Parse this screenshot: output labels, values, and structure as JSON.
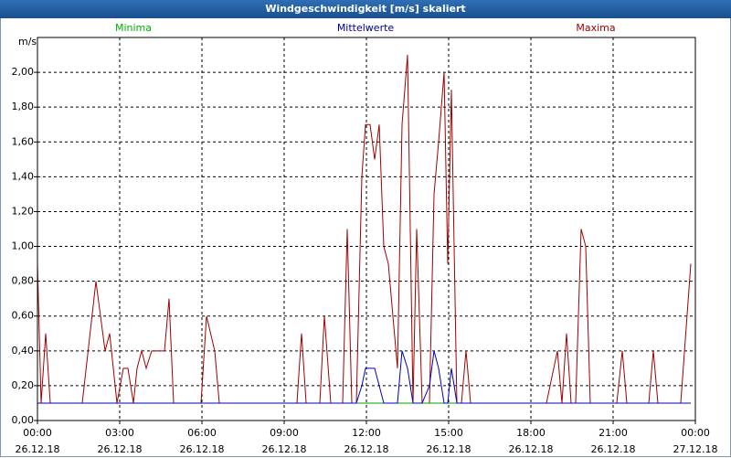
{
  "chart_data": {
    "type": "line",
    "title": "Windgeschwindigkeit [m/s] skaliert",
    "y_label": "m/s",
    "grid": true,
    "xlim": [
      0,
      1440
    ],
    "xticks": [
      {
        "value": 0,
        "label": "00:00\n26.12.18"
      },
      {
        "value": 180,
        "label": "03:00\n26.12.18"
      },
      {
        "value": 360,
        "label": "06:00\n26.12.18"
      },
      {
        "value": 540,
        "label": "09:00\n26.12.18"
      },
      {
        "value": 720,
        "label": "12:00\n26.12.18"
      },
      {
        "value": 900,
        "label": "15:00\n26.12.18"
      },
      {
        "value": 1080,
        "label": "18:00\n26.12.18"
      },
      {
        "value": 1260,
        "label": "21:00\n26.12.18"
      },
      {
        "value": 1440,
        "label": "00:00\n27.12.18"
      }
    ],
    "ylim": [
      0,
      2.2
    ],
    "yticks": [
      {
        "value": 0,
        "label": "0,00"
      },
      {
        "value": 0.2,
        "label": "0,20"
      },
      {
        "value": 0.4,
        "label": "0,40"
      },
      {
        "value": 0.6,
        "label": "0,60"
      },
      {
        "value": 0.8,
        "label": "0,80"
      },
      {
        "value": 1.0,
        "label": "1,00"
      },
      {
        "value": 1.2,
        "label": "1,20"
      },
      {
        "value": 1.4,
        "label": "1,40"
      },
      {
        "value": 1.6,
        "label": "1,60"
      },
      {
        "value": 1.8,
        "label": "1,80"
      },
      {
        "value": 2.0,
        "label": "2,00"
      }
    ],
    "x": [
      0,
      8,
      18,
      28,
      98,
      128,
      148,
      158,
      174,
      188,
      198,
      210,
      218,
      228,
      238,
      250,
      278,
      288,
      298,
      358,
      370,
      388,
      398,
      568,
      578,
      588,
      618,
      628,
      642,
      668,
      678,
      688,
      698,
      710,
      718,
      728,
      738,
      748,
      758,
      768,
      788,
      798,
      810,
      822,
      830,
      842,
      858,
      868,
      878,
      890,
      898,
      906,
      918,
      928,
      938,
      948,
      1114,
      1138,
      1148,
      1158,
      1168,
      1178,
      1190,
      1200,
      1210,
      1268,
      1280,
      1290,
      1338,
      1348,
      1358,
      1408,
      1430
    ],
    "series": [
      {
        "name": "Maxima",
        "color": "#a00000",
        "text_color": "#a00000",
        "values": [
          0.9,
          0.1,
          0.5,
          0.1,
          0.1,
          0.8,
          0.4,
          0.5,
          0.1,
          0.3,
          0.3,
          0.1,
          0.3,
          0.4,
          0.3,
          0.4,
          0.4,
          0.7,
          0.1,
          0.1,
          0.6,
          0.4,
          0.1,
          0.1,
          0.5,
          0.1,
          0.1,
          0.6,
          0.1,
          0.1,
          1.1,
          0.1,
          0.1,
          1.4,
          1.7,
          1.7,
          1.5,
          1.7,
          1.0,
          0.9,
          0.3,
          1.7,
          2.1,
          0.1,
          1.1,
          0.1,
          0.1,
          1.3,
          1.6,
          2.0,
          0.9,
          1.9,
          0.1,
          0.1,
          0.4,
          0.1,
          0.1,
          0.4,
          0.1,
          0.5,
          0.1,
          0.1,
          1.1,
          1.0,
          0.1,
          0.1,
          0.4,
          0.1,
          0.1,
          0.4,
          0.1,
          0.1,
          0.9
        ]
      },
      {
        "name": "Minima",
        "color": "#00a000",
        "text_color": "#00b000",
        "values": [
          0.1,
          0.1,
          0.1,
          0.1,
          0.1,
          0.1,
          0.1,
          0.1,
          0.1,
          0.1,
          0.1,
          0.1,
          0.1,
          0.1,
          0.1,
          0.1,
          0.1,
          0.1,
          0.1,
          0.1,
          0.1,
          0.1,
          0.1,
          0.1,
          0.1,
          0.1,
          0.1,
          0.1,
          0.1,
          0.1,
          0.1,
          0.1,
          0.1,
          0.1,
          0.1,
          0.1,
          0.1,
          0.1,
          0.1,
          0.1,
          0.1,
          0.1,
          0.1,
          0.1,
          0.1,
          0.1,
          0.1,
          0.1,
          0.1,
          0.1,
          0.1,
          0.1,
          0.1,
          0.1,
          0.1,
          0.1,
          0.1,
          0.1,
          0.1,
          0.1,
          0.1,
          0.1,
          0.1,
          0.1,
          0.1,
          0.1,
          0.1,
          0.1,
          0.1,
          0.1,
          0.1,
          0.1,
          0.1
        ]
      },
      {
        "name": "Mittelwerte",
        "color": "#0000c0",
        "text_color": "#000090",
        "values": [
          0.1,
          0.1,
          0.1,
          0.1,
          0.1,
          0.1,
          0.1,
          0.1,
          0.1,
          0.1,
          0.1,
          0.1,
          0.1,
          0.1,
          0.1,
          0.1,
          0.1,
          0.1,
          0.1,
          0.1,
          0.1,
          0.1,
          0.1,
          0.1,
          0.1,
          0.1,
          0.1,
          0.1,
          0.1,
          0.1,
          0.1,
          0.1,
          0.1,
          0.2,
          0.3,
          0.3,
          0.3,
          0.2,
          0.1,
          0.1,
          0.1,
          0.4,
          0.3,
          0.1,
          0.1,
          0.1,
          0.2,
          0.4,
          0.3,
          0.1,
          0.1,
          0.3,
          0.1,
          0.1,
          0.1,
          0.1,
          0.1,
          0.1,
          0.1,
          0.1,
          0.1,
          0.1,
          0.1,
          0.1,
          0.1,
          0.1,
          0.1,
          0.1,
          0.1,
          0.1,
          0.1,
          0.1,
          0.1
        ]
      }
    ]
  }
}
